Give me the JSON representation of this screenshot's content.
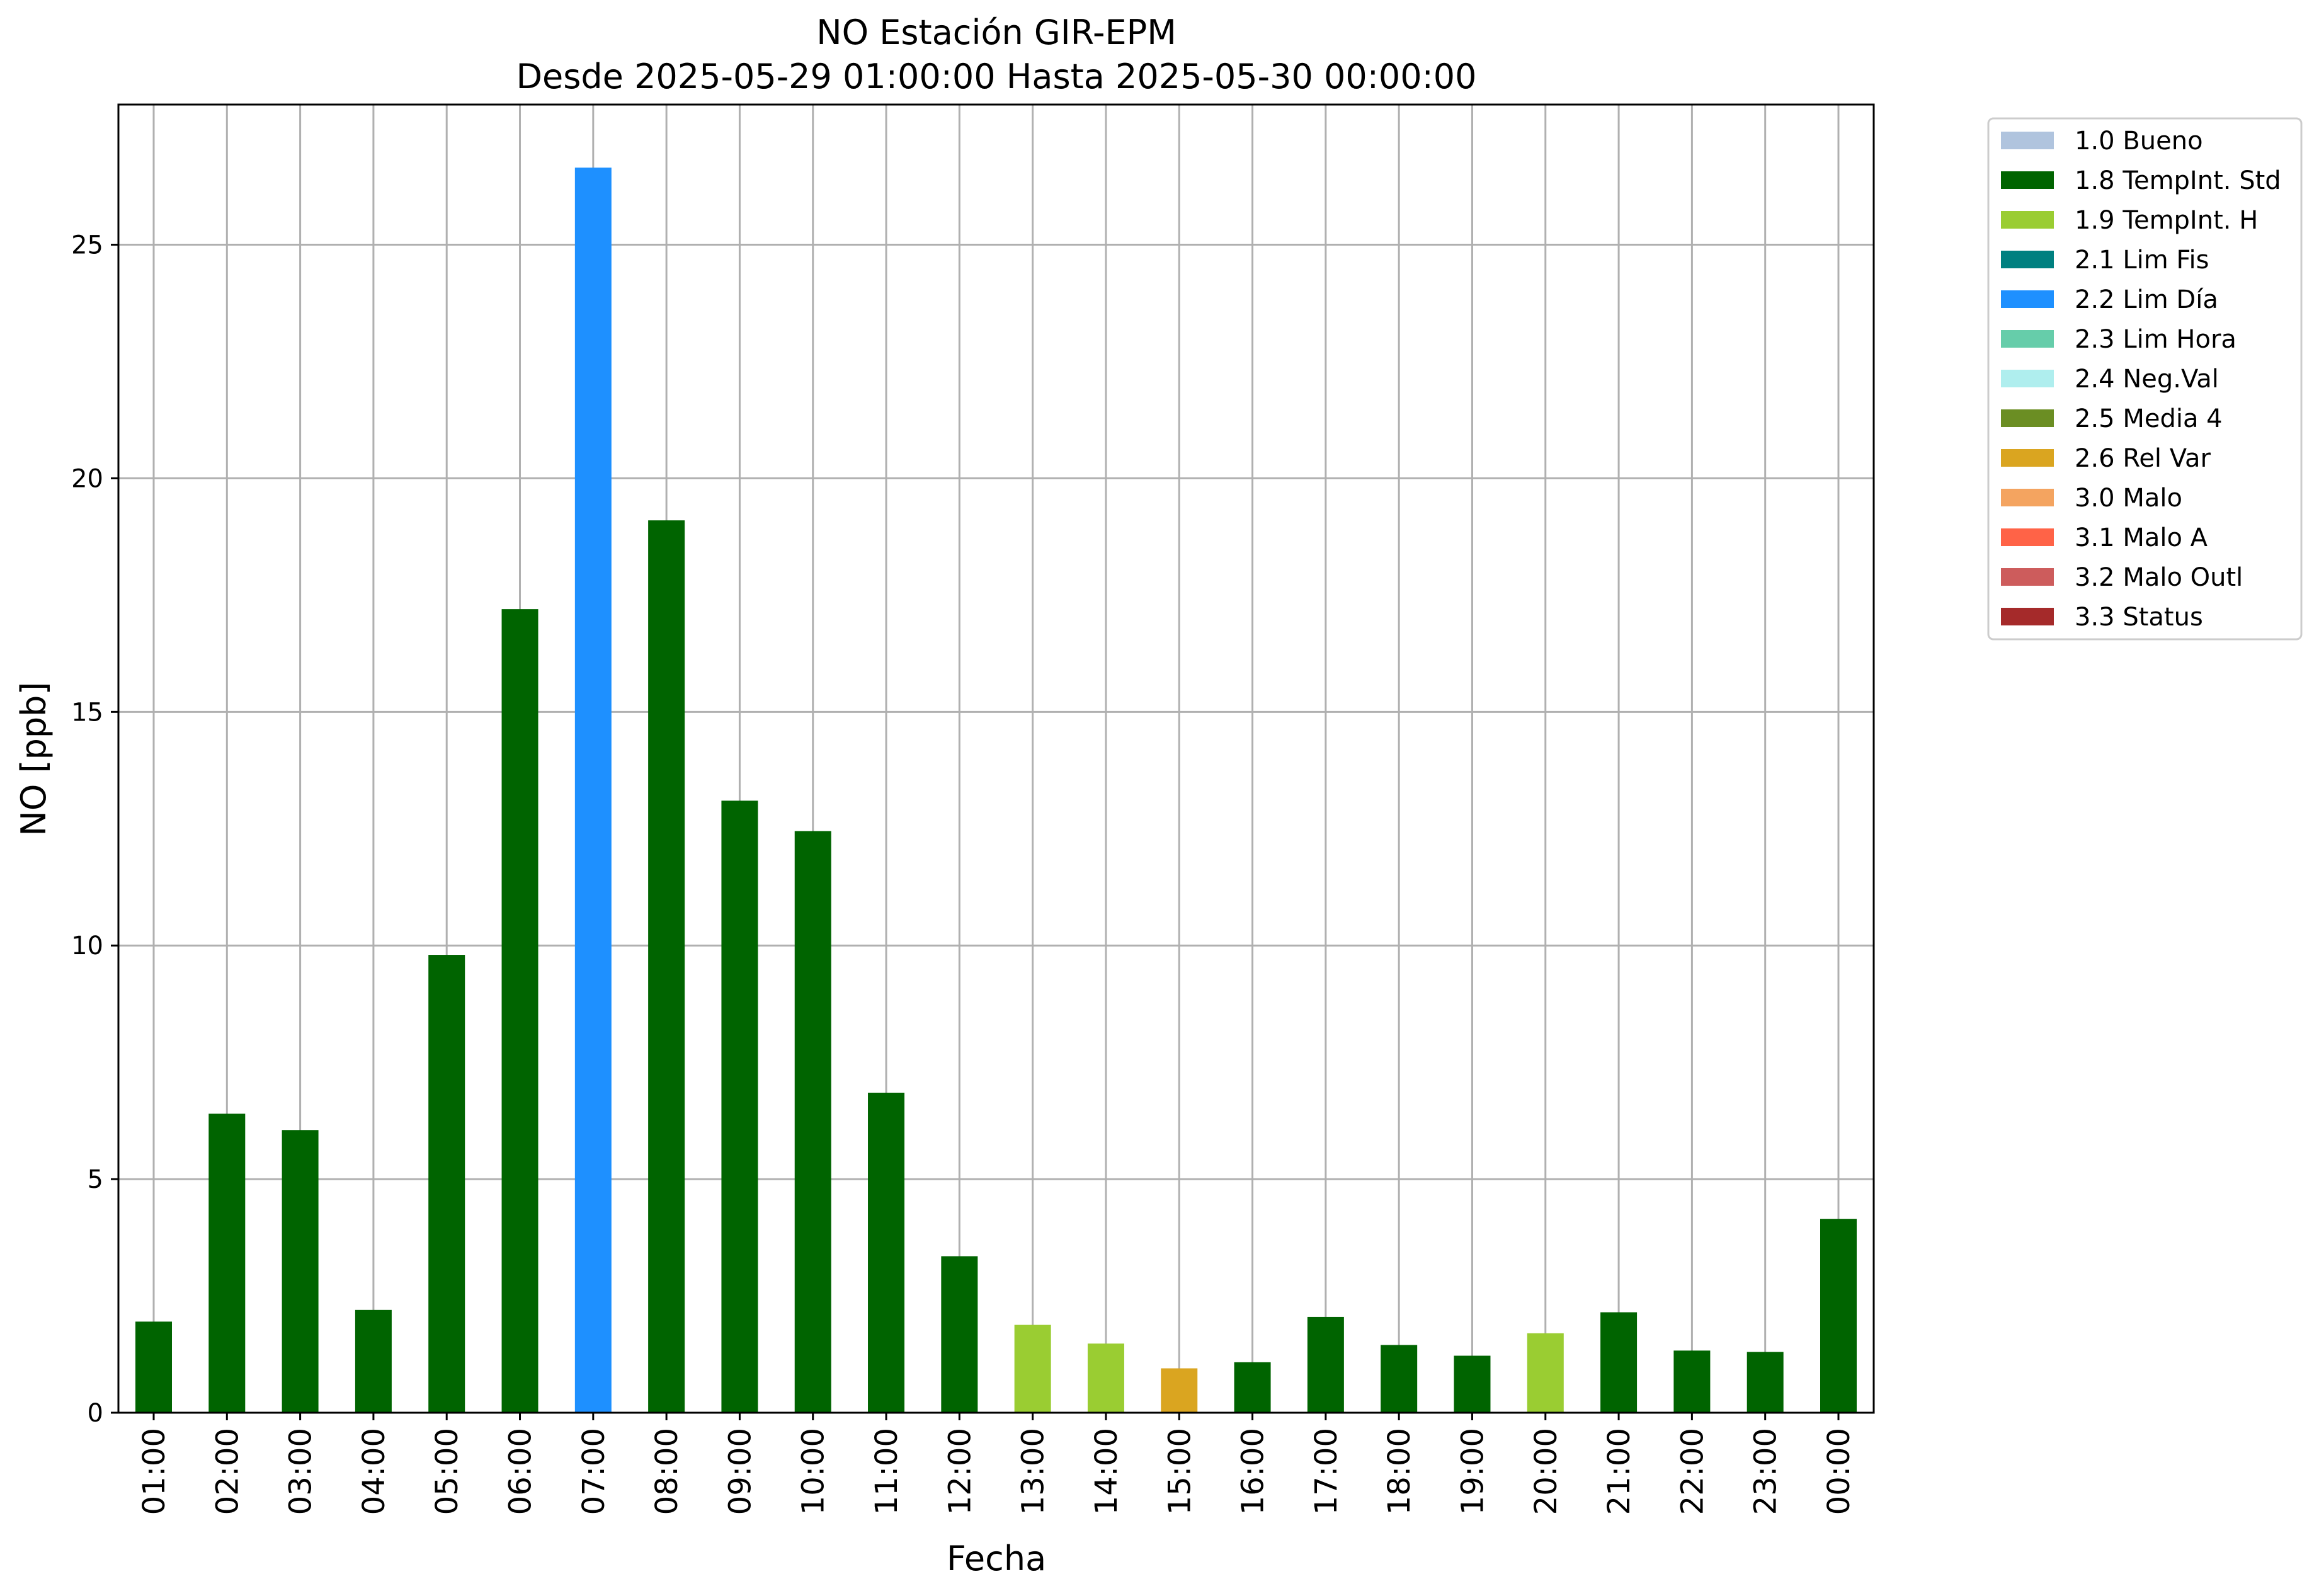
{
  "chart_data": {
    "type": "bar",
    "title": "NO Estación GIR-EPM",
    "subtitle": "Desde 2025-05-29 01:00:00 Hasta 2025-05-30 00:00:00",
    "xlabel": "Fecha",
    "ylabel": "NO [ppb]",
    "ylim": [
      0,
      28
    ],
    "yticks": [
      0,
      5,
      10,
      15,
      20,
      25
    ],
    "grid": true,
    "legend_position": "outside-top-right",
    "categories": [
      "01:00",
      "02:00",
      "03:00",
      "04:00",
      "05:00",
      "06:00",
      "07:00",
      "08:00",
      "09:00",
      "10:00",
      "11:00",
      "12:00",
      "13:00",
      "14:00",
      "15:00",
      "16:00",
      "17:00",
      "18:00",
      "19:00",
      "20:00",
      "21:00",
      "22:00",
      "23:00",
      "00:00"
    ],
    "values": [
      1.95,
      6.4,
      6.05,
      2.2,
      9.8,
      17.2,
      26.65,
      19.1,
      13.1,
      12.45,
      6.85,
      3.35,
      1.88,
      1.48,
      0.95,
      1.08,
      2.05,
      1.45,
      1.22,
      1.7,
      2.15,
      1.33,
      1.3,
      4.15
    ],
    "flags": [
      "1.8",
      "1.8",
      "1.8",
      "1.8",
      "1.8",
      "1.8",
      "2.2",
      "1.8",
      "1.8",
      "1.8",
      "1.8",
      "1.8",
      "1.9",
      "1.9",
      "2.6",
      "1.8",
      "1.8",
      "1.8",
      "1.8",
      "1.9",
      "1.8",
      "1.8",
      "1.8",
      "1.8"
    ],
    "legend": [
      {
        "code": "1.0",
        "label": "1.0 Bueno",
        "color": "#b0c4de"
      },
      {
        "code": "1.8",
        "label": "1.8 TempInt. Std",
        "color": "#006400"
      },
      {
        "code": "1.9",
        "label": "1.9 TempInt. H",
        "color": "#9acd32"
      },
      {
        "code": "2.1",
        "label": "2.1 Lim Fis",
        "color": "#008080"
      },
      {
        "code": "2.2",
        "label": "2.2 Lim Día",
        "color": "#1e90ff"
      },
      {
        "code": "2.3",
        "label": "2.3 Lim Hora",
        "color": "#66cdaa"
      },
      {
        "code": "2.4",
        "label": "2.4 Neg.Val",
        "color": "#afeeee"
      },
      {
        "code": "2.5",
        "label": "2.5 Media 4",
        "color": "#6b8e23"
      },
      {
        "code": "2.6",
        "label": "2.6 Rel Var",
        "color": "#daa520"
      },
      {
        "code": "3.0",
        "label": "3.0 Malo",
        "color": "#f4a460"
      },
      {
        "code": "3.1",
        "label": "3.1 Malo A",
        "color": "#ff6347"
      },
      {
        "code": "3.2",
        "label": "3.2 Malo Outl",
        "color": "#cd5c5c"
      },
      {
        "code": "3.3",
        "label": "3.3 Status",
        "color": "#a52a2a"
      }
    ]
  }
}
